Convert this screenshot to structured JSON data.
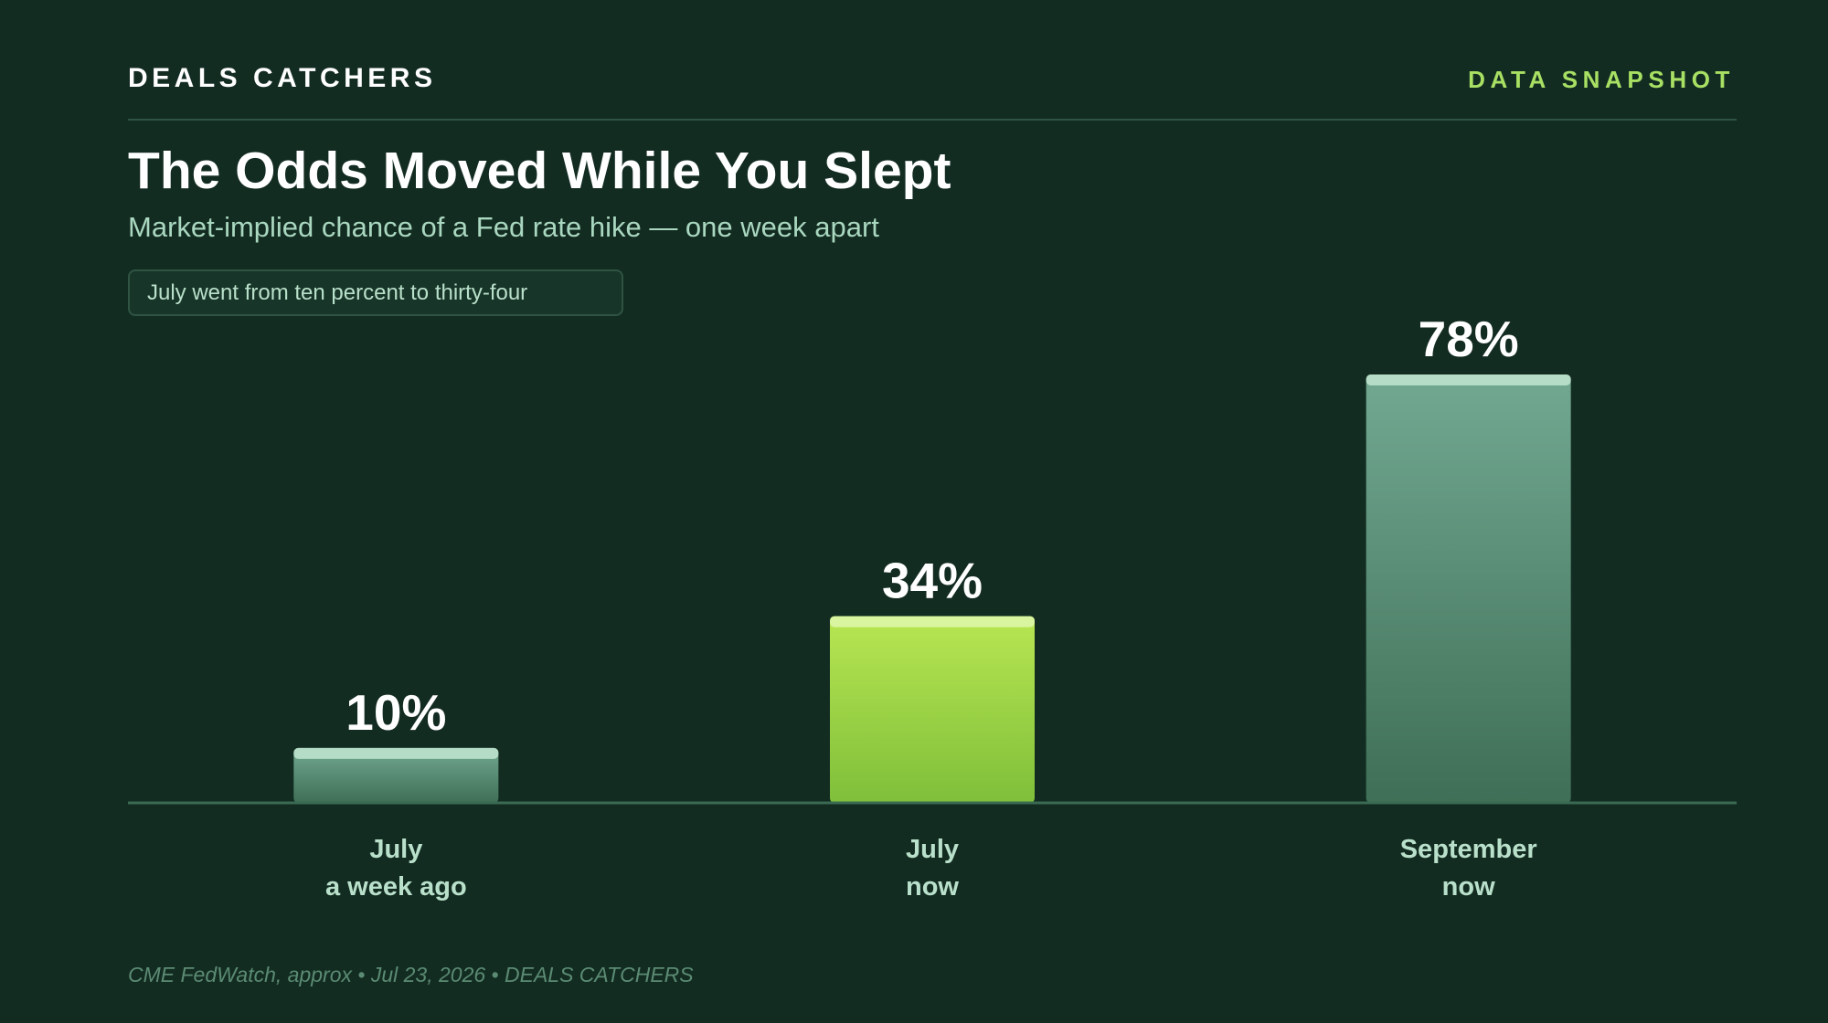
{
  "header": {
    "brand": "DEALS CATCHERS",
    "tag": "DATA SNAPSHOT"
  },
  "title": "The Odds Moved While You Slept",
  "subtitle": "Market-implied chance of a Fed rate hike — one week apart",
  "callout": "July went from ten percent to thirty-four",
  "footer": "CME FedWatch, approx • Jul 23, 2026 • DEALS CATCHERS",
  "colors": {
    "background": "#132c22",
    "accent": "#a8e063",
    "bar_default": "#72a892",
    "bar_highlight": "#b4e450",
    "baseline": "#3a6a52"
  },
  "chart_data": {
    "type": "bar",
    "categories": [
      [
        "July",
        "a week ago"
      ],
      [
        "July",
        "now"
      ],
      [
        "September",
        "now"
      ]
    ],
    "values": [
      10,
      34,
      78
    ],
    "value_labels": [
      "10%",
      "34%",
      "78%"
    ],
    "highlight_index": 1,
    "ylim": [
      0,
      78
    ],
    "grid": false,
    "legend": "none"
  }
}
